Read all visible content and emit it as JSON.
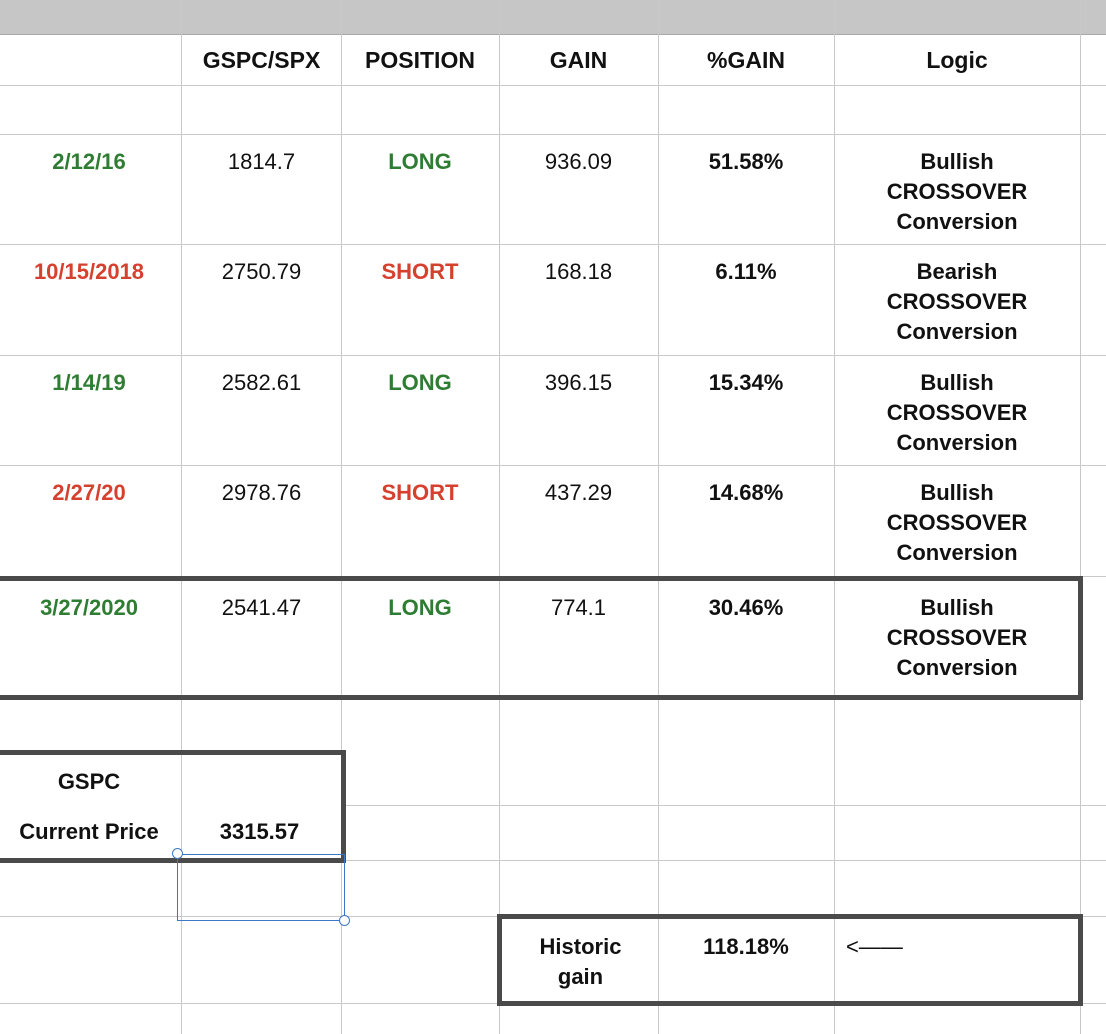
{
  "headers": {
    "price": "GSPC/SPX",
    "position": "POSITION",
    "gain": "GAIN",
    "pct_gain": "%GAIN",
    "logic": "Logic"
  },
  "rows": [
    {
      "date": "2/12/16",
      "date_color": "green",
      "price": "1814.7",
      "position": "LONG",
      "position_color": "green",
      "gain": "936.09",
      "pct_gain": "51.58%",
      "logic": [
        "Bullish",
        "CROSSOVER",
        "Conversion"
      ]
    },
    {
      "date": "10/15/2018",
      "date_color": "red",
      "price": "2750.79",
      "position": "SHORT",
      "position_color": "red",
      "gain": "168.18",
      "pct_gain": "6.11%",
      "logic": [
        "Bearish",
        "CROSSOVER",
        "Conversion"
      ]
    },
    {
      "date": "1/14/19",
      "date_color": "green",
      "price": "2582.61",
      "position": "LONG",
      "position_color": "green",
      "gain": "396.15",
      "pct_gain": "15.34%",
      "logic": [
        "Bullish",
        "CROSSOVER",
        "Conversion"
      ]
    },
    {
      "date": "2/27/20",
      "date_color": "red",
      "price": "2978.76",
      "position": "SHORT",
      "position_color": "red",
      "gain": "437.29",
      "pct_gain": "14.68%",
      "logic": [
        "Bullish",
        "CROSSOVER",
        "Conversion"
      ]
    },
    {
      "date": "3/27/2020",
      "date_color": "green",
      "price": "2541.47",
      "position": "LONG",
      "position_color": "green",
      "gain": "774.1",
      "pct_gain": "30.46%",
      "logic": [
        "Bullish",
        "CROSSOVER",
        "Conversion"
      ]
    }
  ],
  "current": {
    "ticker_label": "GSPC",
    "price_label": "Current Price",
    "price_value": "3315.57"
  },
  "historic": {
    "label_line1": "Historic",
    "label_line2": "gain",
    "value": "118.18%",
    "arrow": "<——"
  },
  "colors": {
    "green": "#2e7d32",
    "red": "#d6402f",
    "box_border": "#4a4a4a",
    "selection": "#3d78c4",
    "column_header_bg": "#c6c6c6",
    "grid": "#c9c9c9"
  }
}
